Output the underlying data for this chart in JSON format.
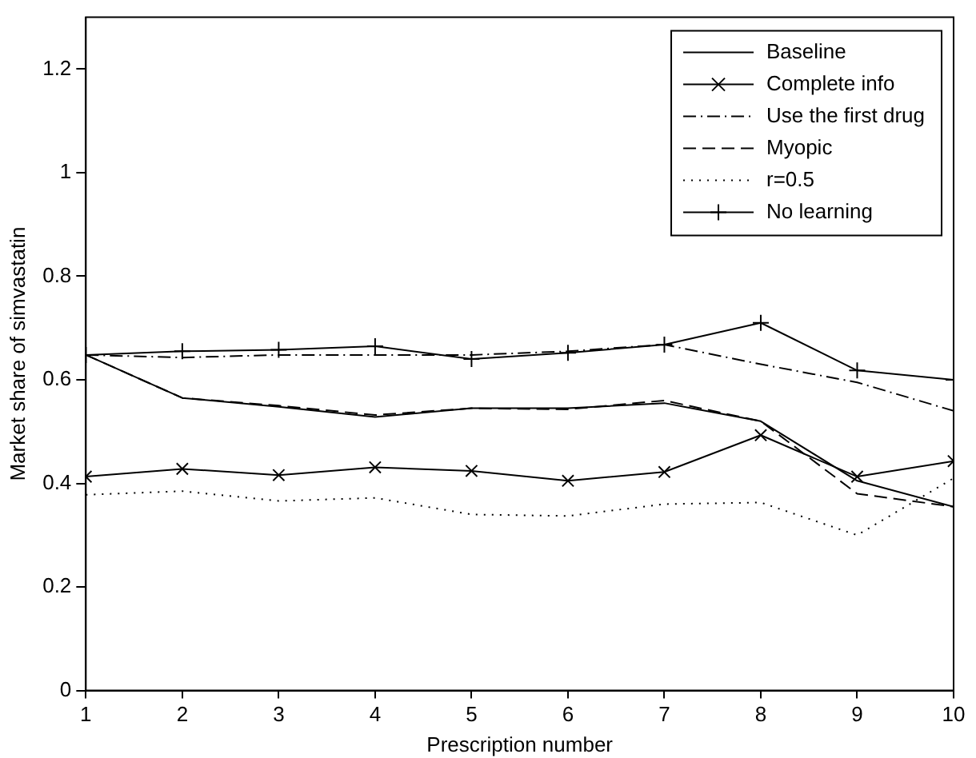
{
  "chart_data": {
    "type": "line",
    "xlabel": "Prescription number",
    "ylabel": "Market share of simvastatin",
    "x": [
      1,
      2,
      3,
      4,
      5,
      6,
      7,
      8,
      9,
      10
    ],
    "xlim": [
      1,
      10
    ],
    "xticks": [
      1,
      2,
      3,
      4,
      5,
      6,
      7,
      8,
      9,
      10
    ],
    "ylim": [
      0,
      1.3
    ],
    "yticks": [
      0,
      0.2,
      0.4,
      0.6,
      0.8,
      1,
      1.2
    ],
    "grid": false,
    "legend": "top right",
    "series": [
      {
        "name": "Baseline",
        "color": "#000000",
        "marker": "none",
        "line_style": "solid",
        "values": [
          0.648,
          0.565,
          0.548,
          0.528,
          0.545,
          0.545,
          0.555,
          0.52,
          0.405,
          0.355
        ]
      },
      {
        "name": "Complete info",
        "color": "#000000",
        "marker": "cross",
        "line_style": "solid",
        "values": [
          0.413,
          0.428,
          0.416,
          0.431,
          0.424,
          0.405,
          0.422,
          0.493,
          0.413,
          0.443
        ]
      },
      {
        "name": "Use the first drug",
        "color": "#000000",
        "marker": "none",
        "line_style": "dashdot",
        "values": [
          0.648,
          0.643,
          0.648,
          0.648,
          0.648,
          0.655,
          0.668,
          0.63,
          0.595,
          0.54
        ]
      },
      {
        "name": "Myopic",
        "color": "#000000",
        "marker": "none",
        "line_style": "dashed",
        "values": [
          0.648,
          0.565,
          0.55,
          0.532,
          0.545,
          0.543,
          0.56,
          0.52,
          0.38,
          0.355
        ]
      },
      {
        "name": "r=0.5",
        "color": "#000000",
        "marker": "none",
        "line_style": "dotted",
        "values": [
          0.378,
          0.385,
          0.366,
          0.372,
          0.34,
          0.337,
          0.36,
          0.363,
          0.3,
          0.41
        ]
      },
      {
        "name": "No learning",
        "color": "#000000",
        "marker": "plus",
        "line_style": "solid",
        "values": [
          0.648,
          0.655,
          0.658,
          0.665,
          0.64,
          0.652,
          0.668,
          0.71,
          0.618,
          0.6
        ]
      }
    ]
  }
}
